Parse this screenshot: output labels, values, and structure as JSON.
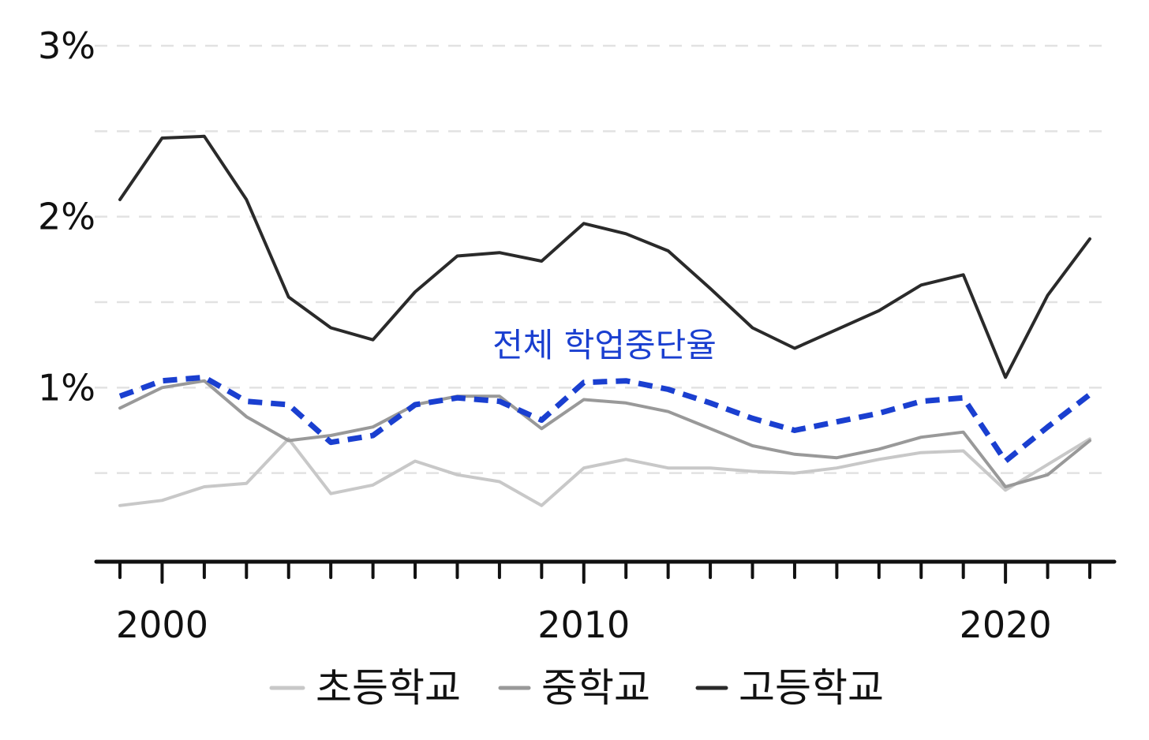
{
  "chart_data": {
    "type": "line",
    "title": "",
    "xlabel": "",
    "ylabel": "",
    "xlim": [
      1999,
      2022
    ],
    "ylim": [
      0,
      3
    ],
    "y_ticks": [
      {
        "value": 1,
        "label": "1%"
      },
      {
        "value": 2,
        "label": "2%"
      },
      {
        "value": 3,
        "label": "3%"
      }
    ],
    "y_minor_gridlines": [
      0.5,
      1.5,
      2.5
    ],
    "x_ticks": [
      {
        "value": 2000,
        "label": "2000"
      },
      {
        "value": 2010,
        "label": "2010"
      },
      {
        "value": 2020,
        "label": "2020"
      }
    ],
    "grid": "horizontal dashed",
    "legend_position": "bottom",
    "x": [
      1999,
      2000,
      2001,
      2002,
      2003,
      2004,
      2005,
      2006,
      2007,
      2008,
      2009,
      2010,
      2011,
      2012,
      2013,
      2014,
      2015,
      2016,
      2017,
      2018,
      2019,
      2020,
      2021,
      2022
    ],
    "series": [
      {
        "name": "초등학교",
        "color": "#c8c8c8",
        "dash": "solid",
        "in_legend": true,
        "values": [
          0.31,
          0.34,
          0.42,
          0.44,
          0.7,
          0.38,
          0.43,
          0.57,
          0.49,
          0.45,
          0.31,
          0.53,
          0.58,
          0.53,
          0.53,
          0.51,
          0.5,
          0.53,
          0.58,
          0.62,
          0.63,
          0.4,
          0.55,
          0.7
        ]
      },
      {
        "name": "중학교",
        "color": "#999999",
        "dash": "solid",
        "in_legend": true,
        "values": [
          0.88,
          1.0,
          1.04,
          0.83,
          0.69,
          0.72,
          0.77,
          0.9,
          0.95,
          0.95,
          0.76,
          0.93,
          0.91,
          0.86,
          0.76,
          0.66,
          0.61,
          0.59,
          0.64,
          0.71,
          0.74,
          0.42,
          0.49,
          0.69
        ]
      },
      {
        "name": "고등학교",
        "color": "#2a2a2a",
        "dash": "solid",
        "in_legend": true,
        "values": [
          2.1,
          2.46,
          2.47,
          2.1,
          1.53,
          1.35,
          1.28,
          1.56,
          1.77,
          1.79,
          1.74,
          1.96,
          1.9,
          1.8,
          1.58,
          1.35,
          1.23,
          1.34,
          1.45,
          1.6,
          1.66,
          1.06,
          1.54,
          1.87
        ]
      },
      {
        "name": "전체 학업중단율",
        "color": "#1a3fd0",
        "dash": "dashed",
        "in_legend": false,
        "values": [
          0.95,
          1.04,
          1.06,
          0.92,
          0.9,
          0.68,
          0.72,
          0.9,
          0.94,
          0.92,
          0.81,
          1.03,
          1.04,
          0.99,
          0.91,
          0.82,
          0.75,
          0.8,
          0.85,
          0.92,
          0.94,
          0.57,
          0.77,
          0.96
        ]
      }
    ],
    "annotations": [
      {
        "text": "전체 학업중단율",
        "series": "전체 학업중단율",
        "color": "#1a3fd0"
      }
    ]
  }
}
